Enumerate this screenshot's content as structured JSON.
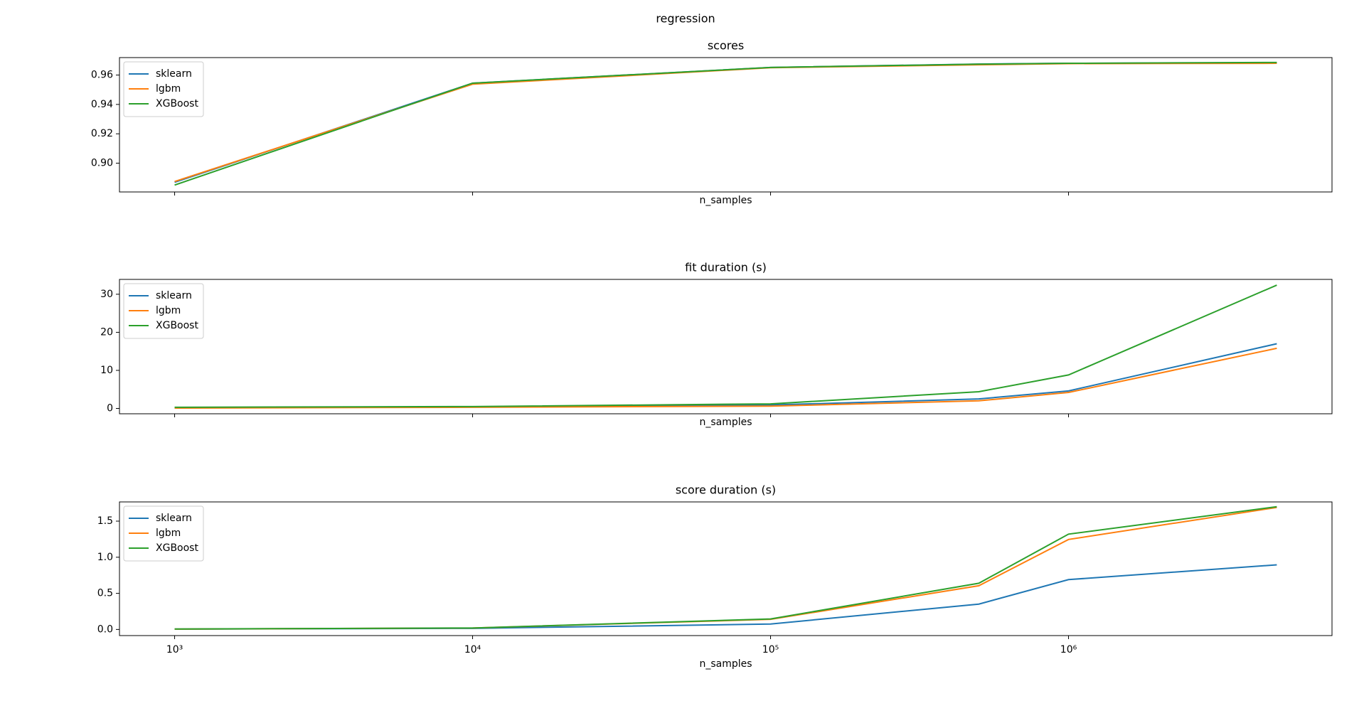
{
  "title": "regression",
  "chart_data": [
    {
      "type": "line",
      "title": "scores",
      "xlabel": "n_samples",
      "xscale": "log",
      "x": [
        1000,
        10000,
        100000,
        500000,
        1000000,
        5000000
      ],
      "xlim": [
        653,
        7660000
      ],
      "xticks": [
        1000,
        10000,
        100000,
        1000000
      ],
      "show_xticklabels": false,
      "ylim": [
        0.8804,
        0.9719
      ],
      "yticks": [
        {
          "value": 0.9,
          "label": "0.90"
        },
        0.92,
        0.94,
        0.96
      ],
      "legend": "upper left",
      "series": [
        {
          "name": "sklearn",
          "color": "#1f77b4",
          "values": [
            0.887,
            0.9545,
            0.9652,
            0.9675,
            0.968,
            0.9684
          ]
        },
        {
          "name": "lgbm",
          "color": "#ff7f0e",
          "values": [
            0.8875,
            0.9538,
            0.965,
            0.967,
            0.9678,
            0.968
          ]
        },
        {
          "name": "XGBoost",
          "color": "#2ca02c",
          "values": [
            0.8851,
            0.9545,
            0.9652,
            0.9674,
            0.968,
            0.9686
          ]
        }
      ]
    },
    {
      "type": "line",
      "title": "fit duration (s)",
      "xlabel": "n_samples",
      "xscale": "log",
      "x": [
        1000,
        10000,
        100000,
        500000,
        1000000,
        5000000
      ],
      "xlim": [
        653,
        7660000
      ],
      "xticks": [
        1000,
        10000,
        100000,
        1000000
      ],
      "show_xticklabels": false,
      "ylim": [
        -1.4,
        33.9
      ],
      "yticks": [
        0,
        10,
        20,
        30
      ],
      "legend": "upper left",
      "series": [
        {
          "name": "sklearn",
          "color": "#1f77b4",
          "values": [
            0.2,
            0.4,
            0.9,
            2.5,
            4.6,
            17.0
          ]
        },
        {
          "name": "lgbm",
          "color": "#ff7f0e",
          "values": [
            0.1,
            0.3,
            0.6,
            2.0,
            4.2,
            15.8
          ]
        },
        {
          "name": "XGBoost",
          "color": "#2ca02c",
          "values": [
            0.3,
            0.5,
            1.2,
            4.4,
            8.8,
            32.4
          ]
        }
      ]
    },
    {
      "type": "line",
      "title": "score duration (s)",
      "xlabel": "n_samples",
      "xscale": "log",
      "x": [
        1000,
        10000,
        100000,
        500000,
        1000000,
        5000000
      ],
      "xlim": [
        653,
        7660000
      ],
      "xticks": [
        {
          "value": 1000,
          "label": "10³"
        },
        {
          "value": 10000,
          "label": "10⁴"
        },
        {
          "value": 100000,
          "label": "10⁵"
        },
        {
          "value": 1000000,
          "label": "10⁶"
        }
      ],
      "show_xticklabels": true,
      "ylim": [
        -0.085,
        1.766
      ],
      "yticks": [
        {
          "value": 0,
          "label": "0.0"
        },
        0.5,
        {
          "value": 1,
          "label": "1.0"
        },
        1.5
      ],
      "legend": "upper left",
      "series": [
        {
          "name": "sklearn",
          "color": "#1f77b4",
          "values": [
            0.005,
            0.015,
            0.075,
            0.351,
            0.69,
            0.895
          ]
        },
        {
          "name": "lgbm",
          "color": "#ff7f0e",
          "values": [
            0.005,
            0.02,
            0.14,
            0.605,
            1.246,
            1.69
          ]
        },
        {
          "name": "XGBoost",
          "color": "#2ca02c",
          "values": [
            0.006,
            0.02,
            0.145,
            0.64,
            1.32,
            1.7
          ]
        }
      ]
    }
  ]
}
